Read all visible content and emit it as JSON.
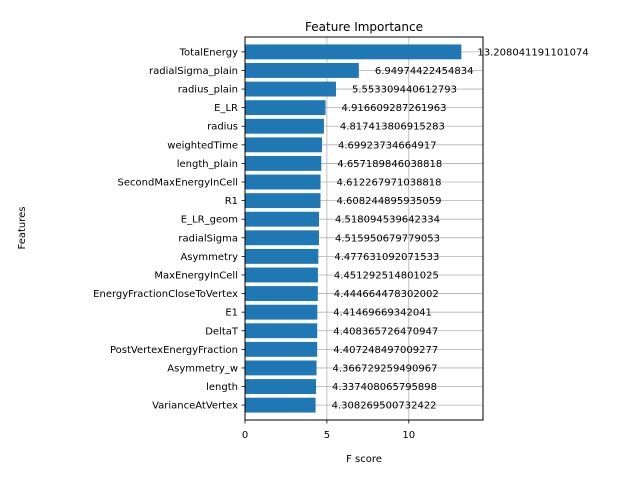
{
  "chart_data": {
    "type": "bar",
    "orientation": "horizontal",
    "title": "Feature Importance",
    "xlabel": "F score",
    "ylabel": "Features",
    "xlim": [
      0,
      14.53
    ],
    "xticks": [
      0,
      5,
      10
    ],
    "grid": true,
    "bar_color": "#1f77b4",
    "categories": [
      "TotalEnergy",
      "radialSigma_plain",
      "radius_plain",
      "E_LR",
      "radius",
      "weightedTime",
      "length_plain",
      "SecondMaxEnergyInCell",
      "R1",
      "E_LR_geom",
      "radialSigma",
      "Asymmetry",
      "MaxEnergyInCell",
      "EnergyFractionCloseToVertex",
      "E1",
      "DeltaT",
      "PostVertexEnergyFraction",
      "Asymmetry_w",
      "length",
      "VarianceAtVertex"
    ],
    "values": [
      13.208041191101074,
      6.94974422454834,
      5.553309440612793,
      4.916609287261963,
      4.817413806915283,
      4.69923734664917,
      4.657189846038818,
      4.612267971038818,
      4.608244895935059,
      4.518094539642334,
      4.515950679779053,
      4.477631092071533,
      4.451292514801025,
      4.444664478302002,
      4.41469669342041,
      4.408365726470947,
      4.407248497009277,
      4.366729259490967,
      4.337408065795898,
      4.308269500732422
    ],
    "value_labels": [
      "13.208041191101074",
      "6.94974422454834",
      "5.553309440612793",
      "4.916609287261963",
      "4.817413806915283",
      "4.69923734664917",
      "4.657189846038818",
      "4.612267971038818",
      "4.608244895935059",
      "4.518094539642334",
      "4.515950679779053",
      "4.477631092071533",
      "4.451292514801025",
      "4.444664478302002",
      "4.41469669342041",
      "4.408365726470947",
      "4.407248497009277",
      "4.366729259490967",
      "4.337408065795898",
      "4.308269500732422"
    ]
  }
}
